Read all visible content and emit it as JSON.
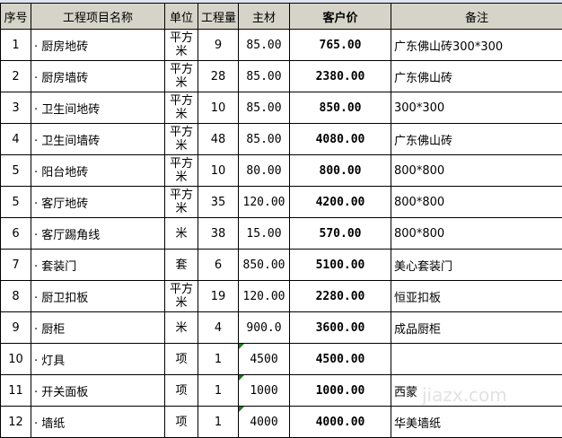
{
  "headers": [
    "序号",
    "工程项目名称",
    "单位",
    "工程量",
    "主材",
    "客户价",
    "备注"
  ],
  "rows": [
    {
      "no": "1",
      "name": "· 厨房地砖",
      "unit": "平方米",
      "qty": "9",
      "mat": "85.00",
      "price": "765.00",
      "note": "广东佛山砖300*300",
      "flag": false
    },
    {
      "no": "2",
      "name": "· 厨房墙砖",
      "unit": "平方米",
      "qty": "28",
      "mat": "85.00",
      "price": "2380.00",
      "note": "广东佛山砖",
      "flag": false
    },
    {
      "no": "3",
      "name": "· 卫生间地砖",
      "unit": "平方米",
      "qty": "10",
      "mat": "85.00",
      "price": "850.00",
      "note": "300*300",
      "flag": false
    },
    {
      "no": "4",
      "name": "· 卫生间墙砖",
      "unit": "平方米",
      "qty": "48",
      "mat": "85.00",
      "price": "4080.00",
      "note": "广东佛山砖",
      "flag": false
    },
    {
      "no": "5",
      "name": "· 阳台地砖",
      "unit": "平方米",
      "qty": "10",
      "mat": "80.00",
      "price": "800.00",
      "note": "800*800",
      "flag": false
    },
    {
      "no": "5",
      "name": "· 客厅地砖",
      "unit": "平方米",
      "qty": "35",
      "mat": "120.00",
      "price": "4200.00",
      "note": "800*800",
      "flag": false
    },
    {
      "no": "6",
      "name": "· 客厅踢角线",
      "unit": "米",
      "qty": "38",
      "mat": "15.00",
      "price": "570.00",
      "note": "800*800",
      "flag": false
    },
    {
      "no": "7",
      "name": "· 套装门",
      "unit": "套",
      "qty": "6",
      "mat": "850.00",
      "price": "5100.00",
      "note": "美心套装门",
      "flag": false
    },
    {
      "no": "8",
      "name": "· 厨卫扣板",
      "unit": "平方米",
      "qty": "19",
      "mat": "120.00",
      "price": "2280.00",
      "note": "恒亚扣板",
      "flag": false
    },
    {
      "no": "9",
      "name": "· 厨柜",
      "unit": "米",
      "qty": "4",
      "mat": "900.0",
      "price": "3600.00",
      "note": "成品厨柜",
      "flag": false
    },
    {
      "no": "10",
      "name": "· 灯具",
      "unit": "项",
      "qty": "1",
      "mat": "4500",
      "price": "4500.00",
      "note": "",
      "flag": true
    },
    {
      "no": "11",
      "name": "· 开关面板",
      "unit": "项",
      "qty": "1",
      "mat": "1000",
      "price": "1000.00",
      "note": "西蒙",
      "flag": true
    },
    {
      "no": "12",
      "name": "· 墙纸",
      "unit": "项",
      "qty": "1",
      "mat": "4000",
      "price": "4000.00",
      "note": "华美墙纸",
      "flag": true
    }
  ],
  "watermark": "jiazx.com"
}
